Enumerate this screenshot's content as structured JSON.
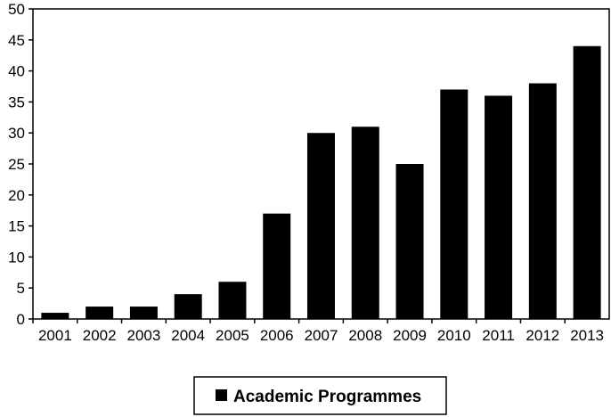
{
  "chart_data": {
    "type": "bar",
    "categories": [
      "2001",
      "2002",
      "2003",
      "2004",
      "2005",
      "2006",
      "2007",
      "2008",
      "2009",
      "2010",
      "2011",
      "2012",
      "2013"
    ],
    "series": [
      {
        "name": "Academic Programmes",
        "values": [
          1,
          2,
          2,
          4,
          6,
          17,
          30,
          31,
          25,
          37,
          36,
          38,
          44
        ]
      }
    ],
    "title": "",
    "xlabel": "",
    "ylabel": "",
    "ylim": [
      0,
      50
    ],
    "yticks": [
      "0",
      "5",
      "10",
      "15",
      "20",
      "25",
      "30",
      "35",
      "40",
      "45",
      "50"
    ],
    "grid": false,
    "legend_position": "bottom",
    "bar_color": "#000000"
  }
}
